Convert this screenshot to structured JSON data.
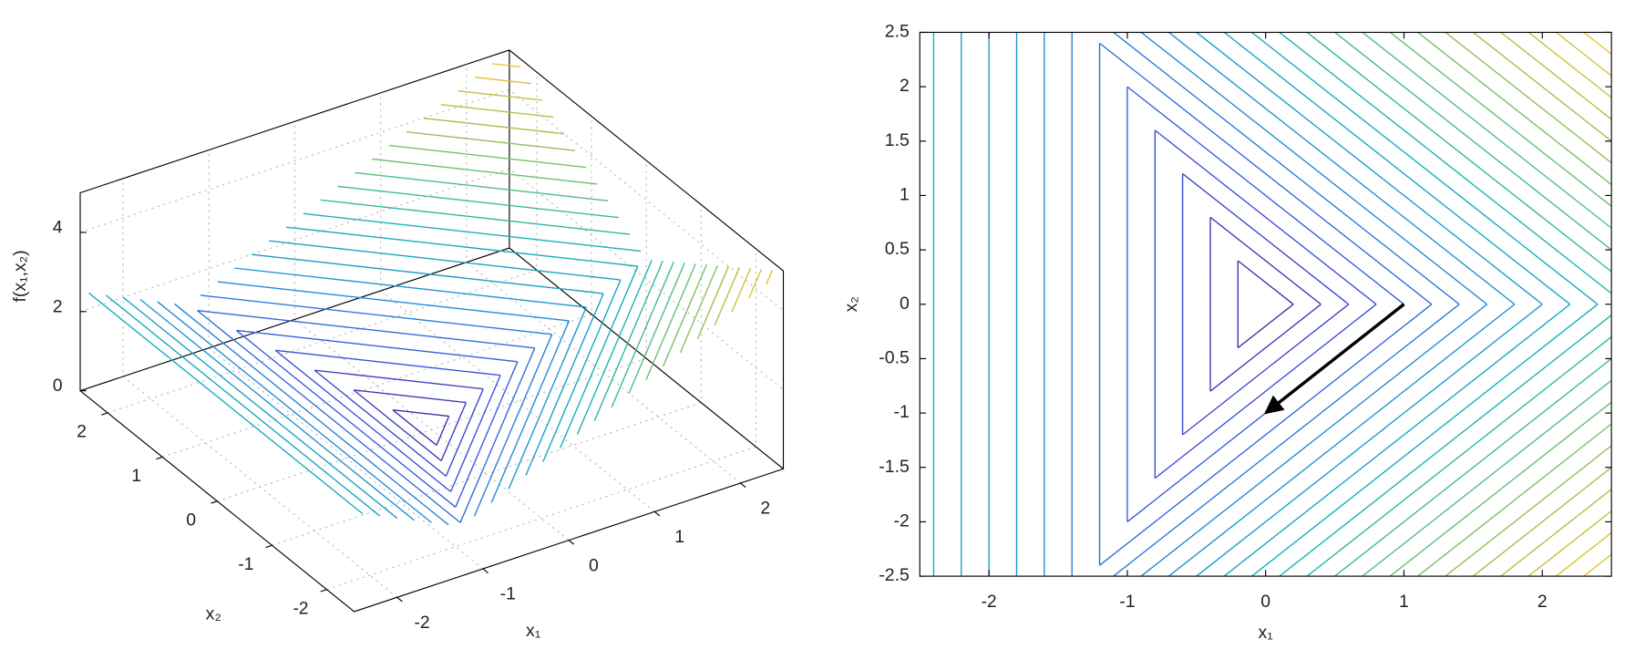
{
  "chart_data": [
    {
      "type": "contour3d",
      "xlabel": "x₁",
      "ylabel": "x₂",
      "zlabel": "f(x₁,x₂)",
      "xlim": [
        -2.5,
        2.5
      ],
      "ylim": [
        -2.5,
        2.5
      ],
      "zlim": [
        0,
        5
      ],
      "xticks": [
        -2,
        -1,
        0,
        1,
        2
      ],
      "yticks": [
        -2,
        -1,
        0,
        1,
        2
      ],
      "zticks": [
        0,
        2,
        4
      ],
      "levels": [
        0.2,
        0.4,
        0.6,
        0.8,
        1.0,
        1.2,
        1.4,
        1.6,
        1.8,
        2.0,
        2.2,
        2.4,
        2.6,
        2.8,
        3.0,
        3.2,
        3.4,
        3.6,
        3.8,
        4.0,
        4.2,
        4.4,
        4.6,
        4.8
      ],
      "clim": [
        0,
        5
      ],
      "colormap": [
        "#3d2a9a",
        "#3f4fe0",
        "#1e8fd6",
        "#12b0b8",
        "#5cbf78",
        "#b8bd40",
        "#f5c628"
      ],
      "grid": true
    },
    {
      "type": "contour",
      "xlabel": "x₁",
      "ylabel": "x₂",
      "xlim": [
        -2.5,
        2.5
      ],
      "ylim": [
        -2.5,
        2.5
      ],
      "xticks": [
        -2,
        -1,
        0,
        1,
        2
      ],
      "yticks": [
        -2.5,
        -2,
        -1.5,
        -1,
        -0.5,
        0,
        0.5,
        1,
        1.5,
        2,
        2.5
      ],
      "levels": [
        0.2,
        0.4,
        0.6,
        0.8,
        1.0,
        1.2,
        1.4,
        1.6,
        1.8,
        2.0,
        2.2,
        2.4,
        2.6,
        2.8,
        3.0,
        3.2,
        3.4,
        3.6,
        3.8,
        4.0,
        4.2,
        4.4,
        4.6,
        4.8
      ],
      "clim": [
        0,
        5
      ],
      "colormap": [
        "#3d2a9a",
        "#3f4fe0",
        "#1e8fd6",
        "#12b0b8",
        "#5cbf78",
        "#b8bd40",
        "#f5c628"
      ],
      "arrow": {
        "x": [
          1,
          0
        ],
        "y": [
          0,
          -1
        ],
        "color": "#000000"
      }
    }
  ]
}
